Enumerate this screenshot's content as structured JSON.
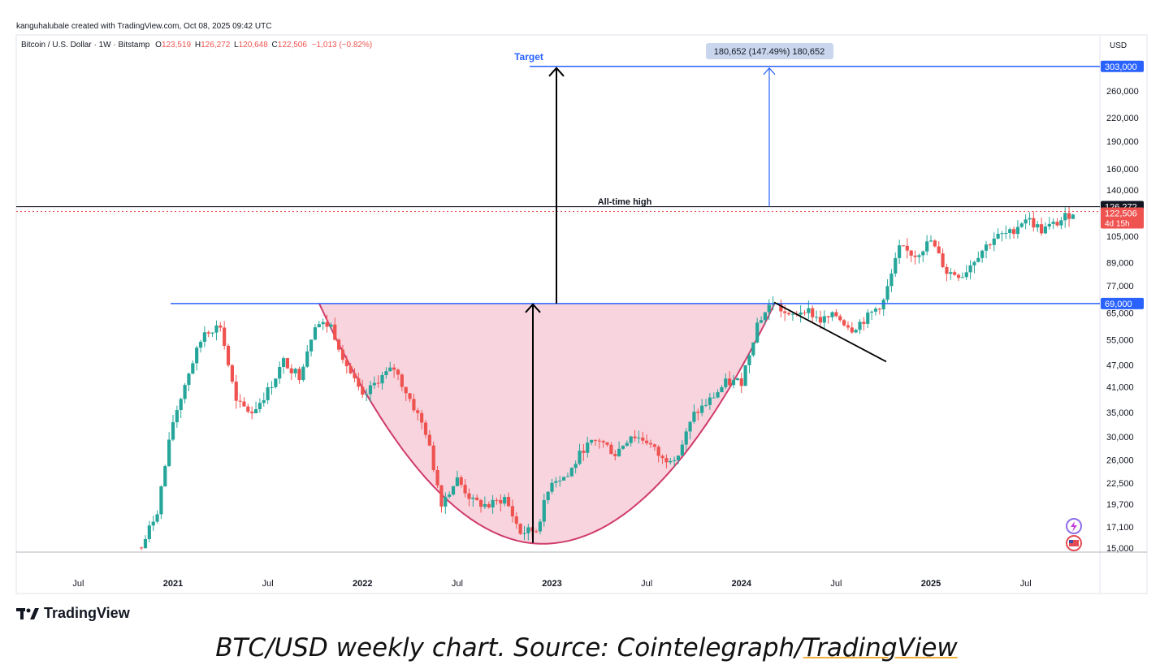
{
  "header": {
    "creator_line": "kanguhalubale created with TradingView.com, Oct 08, 2025 09:42 UTC",
    "symbol": "Bitcoin / U.S. Dollar · 1W · Bitstamp",
    "open_label": "O",
    "open_value": "123,519",
    "high_label": "H",
    "high_value": "126,272",
    "low_label": "L",
    "low_value": "120,648",
    "close_label": "C",
    "close_value": "122,506",
    "change": "−1,013 (−0.82%)",
    "currency": "USD"
  },
  "brand": {
    "logo_text": "TradingView"
  },
  "caption": {
    "prefix": "BTC/USD weekly chart. Source: Cointelegraph/",
    "link": "TradingView"
  },
  "colors": {
    "up": "#26a69a",
    "down": "#ef5350",
    "blue_line": "#2962ff",
    "cup_fill": "#f4c6d3",
    "cup_stroke": "#d03b6a",
    "ath_line": "#131722"
  },
  "icons": [
    "lightning-icon",
    "us-flag-icon"
  ],
  "chart_data": {
    "type": "candlestick",
    "scale": "log",
    "y_ticks": [
      15000,
      17100,
      19700,
      22500,
      26000,
      30000,
      35000,
      41000,
      47000,
      55000,
      65000,
      77000,
      89000,
      105000,
      140000,
      160000,
      190000,
      220000,
      260000
    ],
    "y_tick_labels": [
      "15,000",
      "17,100",
      "19,700",
      "22,500",
      "26,000",
      "30,000",
      "35,000",
      "41,000",
      "47,000",
      "55,000",
      "65,000",
      "77,000",
      "89,000",
      "105,000",
      "140,000",
      "160,000",
      "190,000",
      "220,000",
      "260,000"
    ],
    "x_tick_labels": [
      "Jul",
      "2021",
      "Jul",
      "2022",
      "Jul",
      "2023",
      "Jul",
      "2024",
      "Jul",
      "2025",
      "Jul"
    ],
    "x_tick_dates": [
      "2020-07",
      "2021-01",
      "2021-07",
      "2022-01",
      "2022-07",
      "2023-01",
      "2023-07",
      "2024-01",
      "2024-07",
      "2025-01",
      "2025-07"
    ],
    "ylim": [
      15000,
      330000
    ],
    "price_path": [
      [
        "2020-11",
        15000
      ],
      [
        "2020-12",
        19000
      ],
      [
        "2021-01",
        33000
      ],
      [
        "2021-02",
        45000
      ],
      [
        "2021-03",
        58000
      ],
      [
        "2021-04",
        60000
      ],
      [
        "2021-05",
        37000
      ],
      [
        "2021-06",
        35000
      ],
      [
        "2021-07",
        40000
      ],
      [
        "2021-08",
        48000
      ],
      [
        "2021-09",
        44000
      ],
      [
        "2021-10",
        61000
      ],
      [
        "2021-11",
        60000
      ],
      [
        "2021-12",
        47000
      ],
      [
        "2022-01",
        38000
      ],
      [
        "2022-02",
        43000
      ],
      [
        "2022-03",
        46000
      ],
      [
        "2022-04",
        38000
      ],
      [
        "2022-05",
        31000
      ],
      [
        "2022-06",
        20000
      ],
      [
        "2022-07",
        23000
      ],
      [
        "2022-08",
        20000
      ],
      [
        "2022-09",
        19500
      ],
      [
        "2022-10",
        20500
      ],
      [
        "2022-11",
        16500
      ],
      [
        "2022-12",
        16800
      ],
      [
        "2023-01",
        23000
      ],
      [
        "2023-02",
        23500
      ],
      [
        "2023-03",
        28000
      ],
      [
        "2023-04",
        29500
      ],
      [
        "2023-05",
        27000
      ],
      [
        "2023-06",
        30400
      ],
      [
        "2023-07",
        29300
      ],
      [
        "2023-08",
        26000
      ],
      [
        "2023-09",
        27000
      ],
      [
        "2023-10",
        34500
      ],
      [
        "2023-11",
        37700
      ],
      [
        "2023-12",
        42000
      ],
      [
        "2024-01",
        42500
      ],
      [
        "2024-02",
        61000
      ],
      [
        "2024-03",
        70000
      ],
      [
        "2024-04",
        63000
      ],
      [
        "2024-05",
        67000
      ],
      [
        "2024-06",
        62000
      ],
      [
        "2024-07",
        64000
      ],
      [
        "2024-08",
        59000
      ],
      [
        "2024-09",
        63500
      ],
      [
        "2024-10",
        70000
      ],
      [
        "2024-11",
        97000
      ],
      [
        "2024-12",
        93500
      ],
      [
        "2025-01",
        102000
      ],
      [
        "2025-02",
        84000
      ],
      [
        "2025-03",
        82500
      ],
      [
        "2025-04",
        94000
      ],
      [
        "2025-05",
        104000
      ],
      [
        "2025-06",
        107000
      ],
      [
        "2025-07",
        118000
      ],
      [
        "2025-08",
        109000
      ],
      [
        "2025-09",
        114000
      ],
      [
        "2025-10",
        122506
      ]
    ],
    "horizontal_levels": [
      {
        "value": 69000,
        "label": "69,000"
      },
      {
        "value": 303000,
        "label": "303,000"
      },
      {
        "value": 126272,
        "label": "126,272"
      }
    ],
    "current_price": {
      "value": 122506,
      "label": "122,506",
      "countdown": "4d 15h"
    },
    "annotations": {
      "target": "Target",
      "ath": "All-time high",
      "measure": "180,652 (147.49%) 180,652"
    }
  }
}
